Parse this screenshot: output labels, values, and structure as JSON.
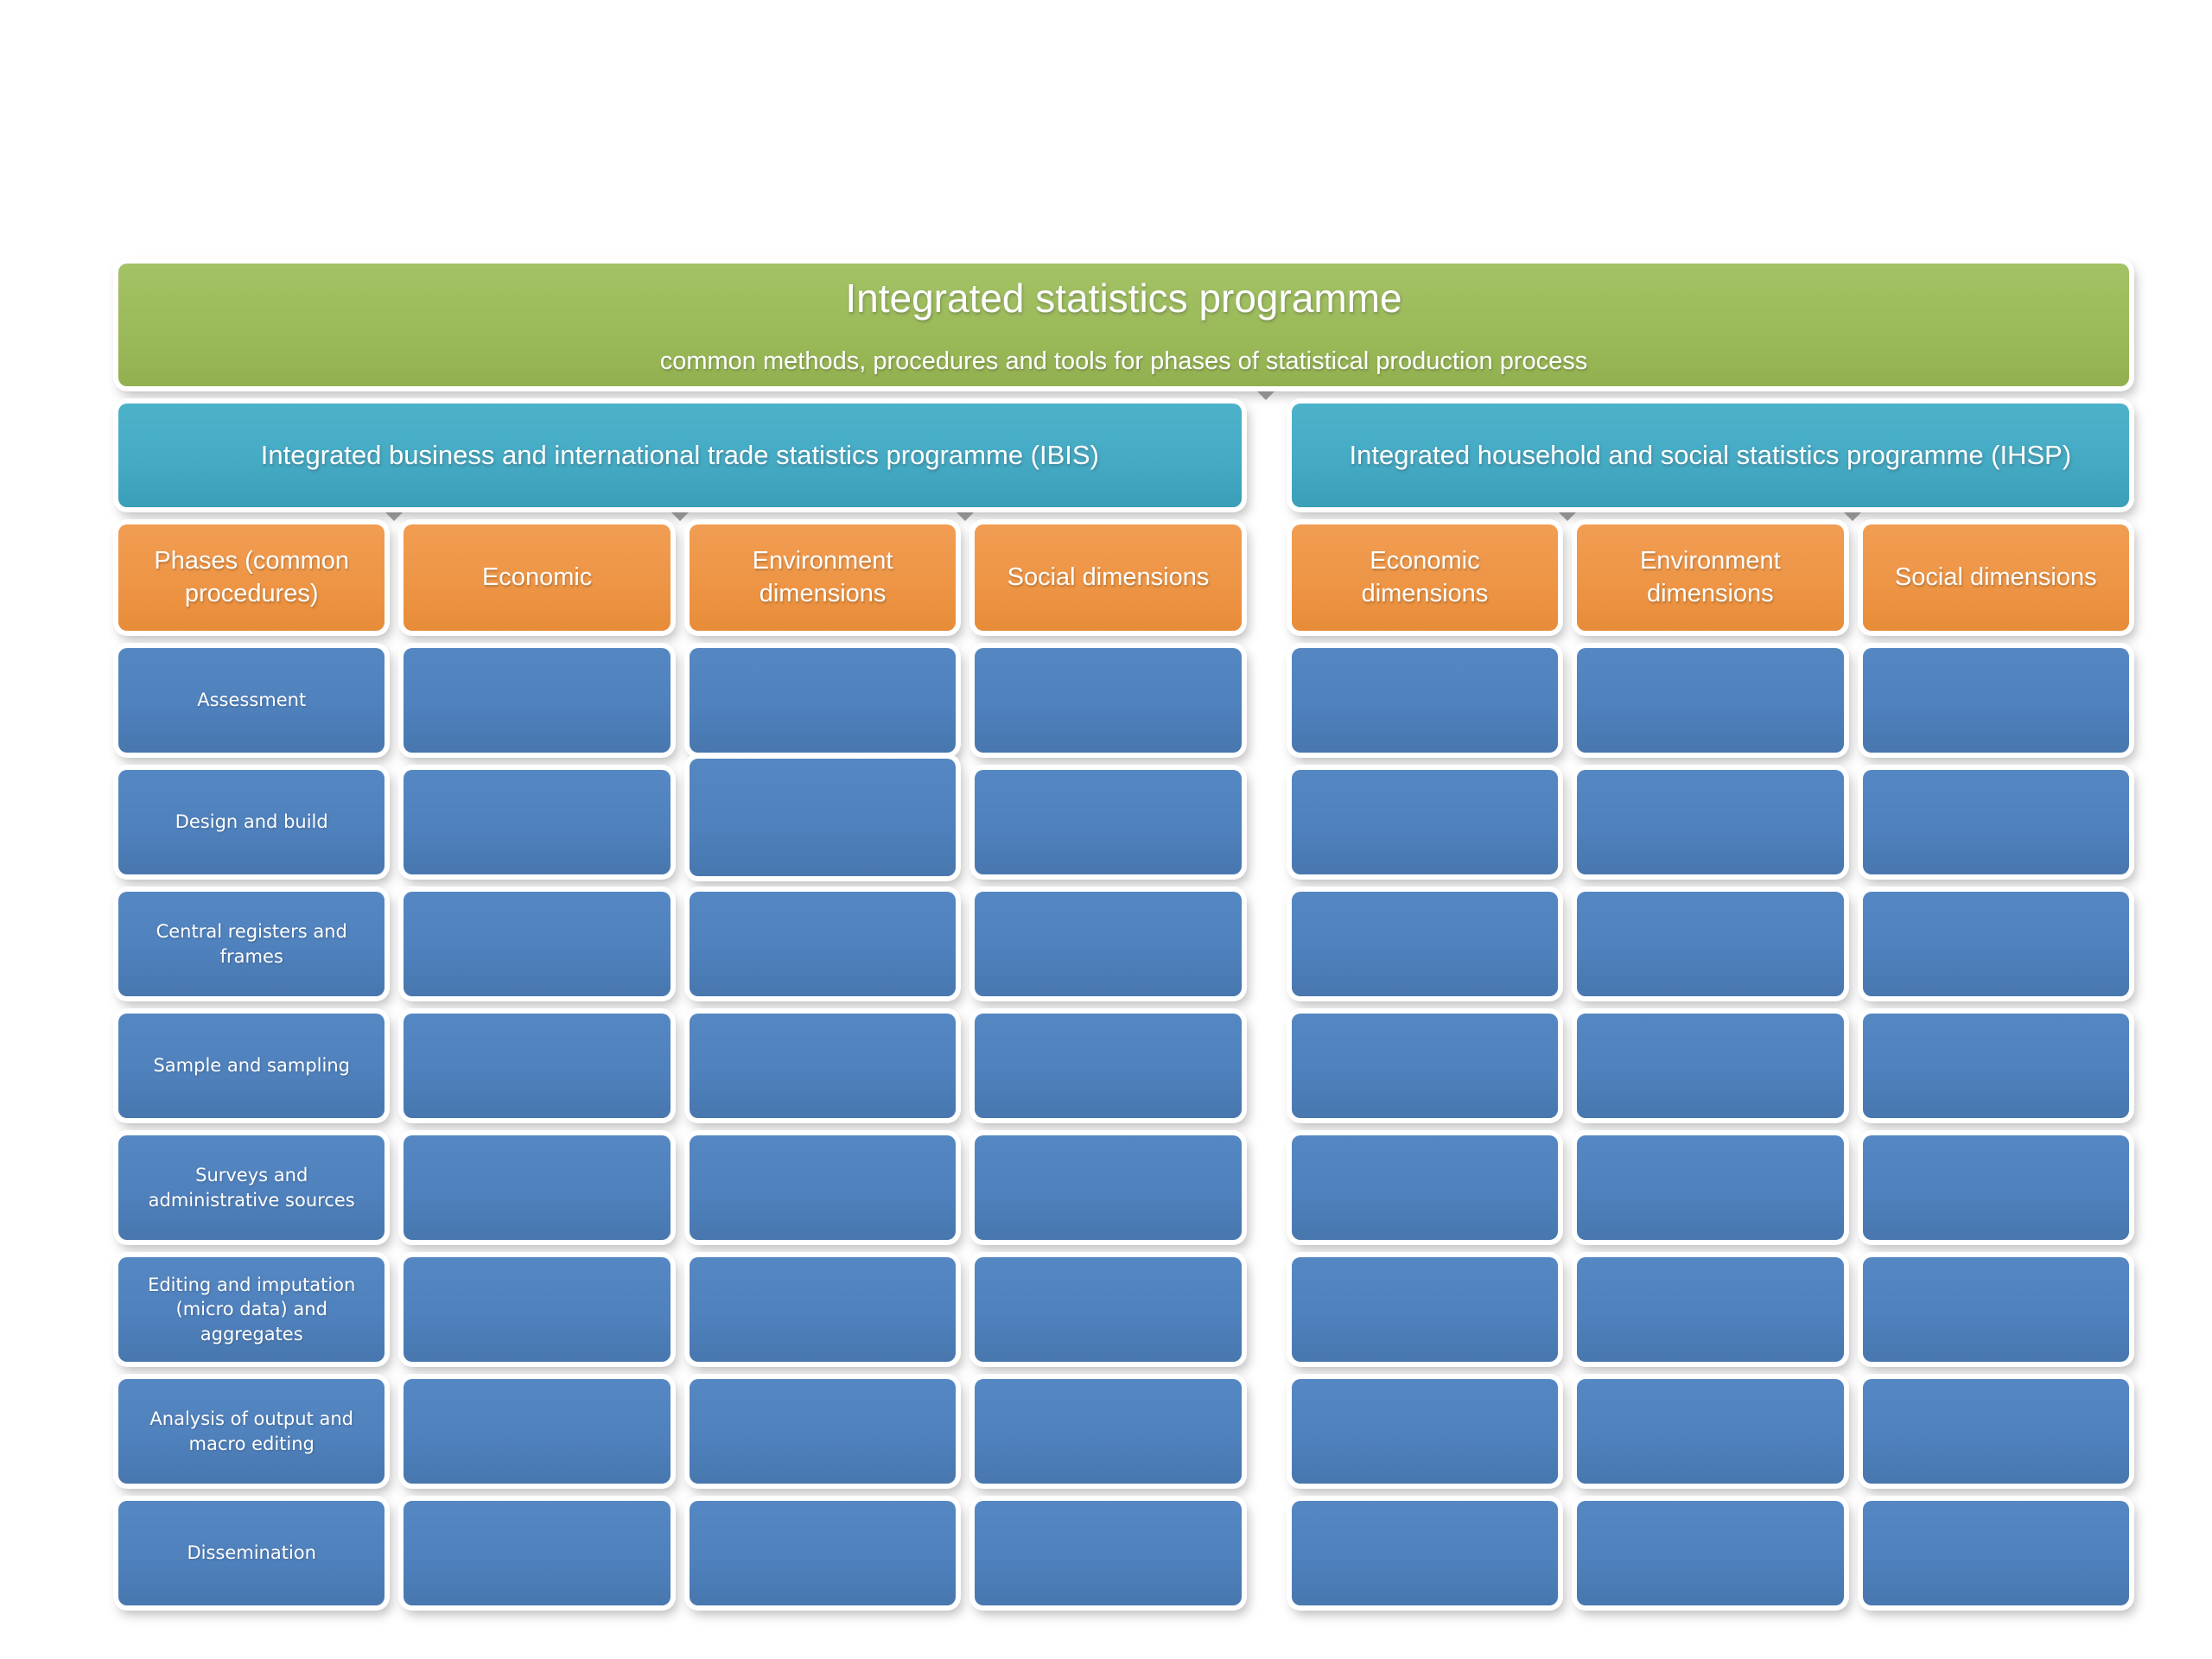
{
  "diagram": {
    "title": "Integrated statistics programme",
    "subtitle": "common methods, procedures and tools for phases of statistical production process",
    "programmes": [
      {
        "abbr": "IBIS",
        "label": "Integrated business and international trade statistics programme (IBIS)"
      },
      {
        "abbr": "IHSP",
        "label": "Integrated household and social statistics programme (IHSP)"
      }
    ],
    "columns": [
      {
        "label": "Phases (common procedures)"
      },
      {
        "label": "Economic"
      },
      {
        "label": "Environment dimensions"
      },
      {
        "label": "Social dimensions"
      },
      {
        "label": "Economic dimensions"
      },
      {
        "label": "Environment dimensions"
      },
      {
        "label": "Social dimensions"
      }
    ],
    "rows": [
      {
        "label": "Assessment"
      },
      {
        "label": "Design and build"
      },
      {
        "label": "Central registers and frames"
      },
      {
        "label": "Sample and sampling"
      },
      {
        "label": "Surveys and administrative sources"
      },
      {
        "label": "Editing and imputation (micro data)  and aggregates"
      },
      {
        "label": "Analysis of output and macro editing"
      },
      {
        "label": "Dissemination"
      }
    ],
    "colors": {
      "title_band": "#9bba59",
      "programme_band": "#45aac4",
      "column_header": "#ee9546",
      "cell": "#4f81bd",
      "connector": "#9b9b9b",
      "text": "#ffffff",
      "background": "#ffffff"
    }
  }
}
